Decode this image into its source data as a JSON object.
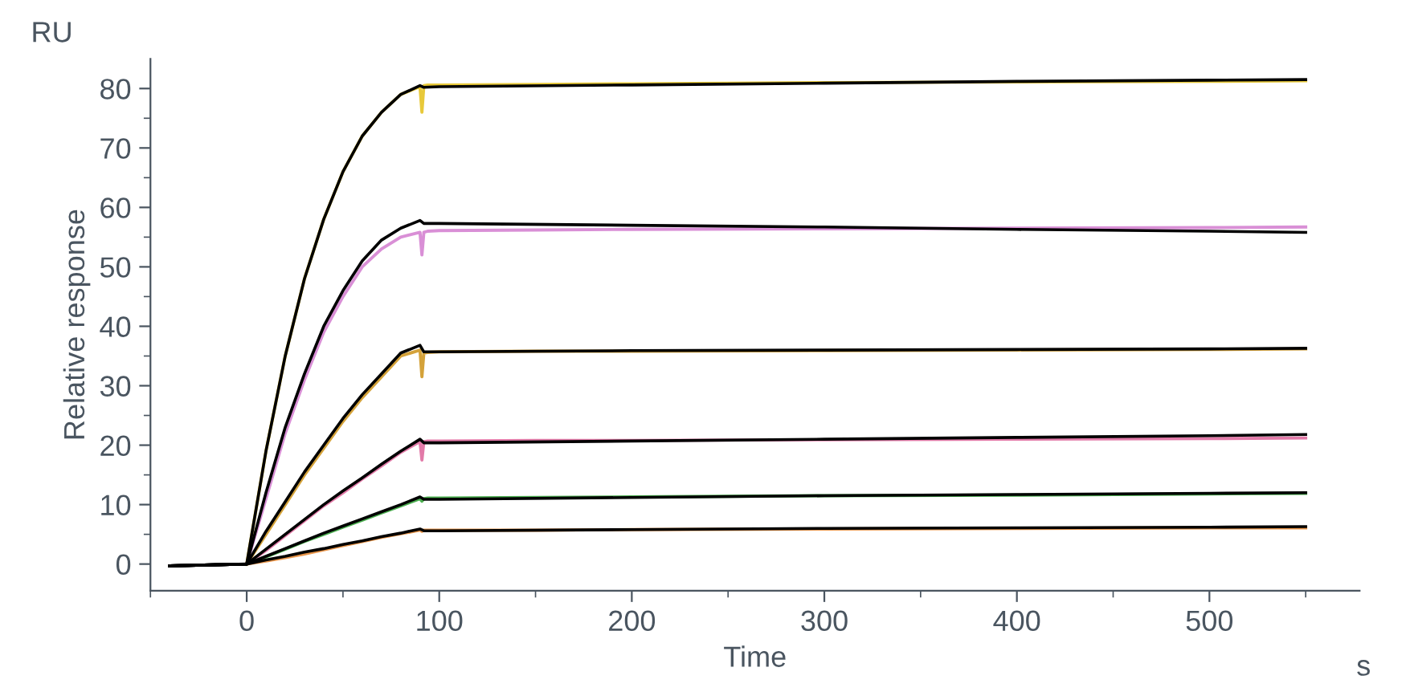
{
  "chart_data": {
    "type": "line",
    "xlabel": "Time",
    "ylabel": "Relative response",
    "annotations": [
      "RU",
      "s"
    ],
    "xlim": [
      -50,
      578
    ],
    "ylim": [
      -4.5,
      85
    ],
    "xticks": [
      {
        "value": -50,
        "label": null
      },
      0,
      {
        "value": 50,
        "label": null
      },
      100,
      {
        "value": 150,
        "label": null
      },
      200,
      {
        "value": 250,
        "label": null
      },
      300,
      {
        "value": 350,
        "label": null
      },
      400,
      {
        "value": 450,
        "label": null
      },
      500,
      {
        "value": 550,
        "label": null
      }
    ],
    "yticks": [
      0,
      {
        "value": 5,
        "label": null
      },
      10,
      {
        "value": 15,
        "label": null
      },
      20,
      {
        "value": 25,
        "label": null
      },
      30,
      {
        "value": 35,
        "label": null
      },
      40,
      {
        "value": 45,
        "label": null
      },
      50,
      {
        "value": 55,
        "label": null
      },
      60,
      {
        "value": 65,
        "label": null
      },
      70,
      {
        "value": 75,
        "label": null
      },
      80
    ],
    "grid": false,
    "legend": false,
    "marker": "none",
    "line_style": "solid",
    "series": [
      {
        "color": "#e8c93a",
        "x": [
          0,
          10,
          20,
          30,
          40,
          50,
          60,
          70,
          80,
          90,
          91,
          92,
          94,
          100,
          150,
          200,
          300,
          400,
          500,
          550
        ],
        "values": [
          0,
          19,
          35,
          48,
          58,
          66,
          72,
          76,
          79,
          80.3,
          76,
          80.5,
          80.6,
          80.6,
          80.7,
          80.8,
          81,
          81.1,
          81.2,
          81.3
        ]
      },
      {
        "color": "#d98fd6",
        "x": [
          0,
          10,
          20,
          30,
          40,
          50,
          60,
          70,
          80,
          90,
          91,
          92,
          94,
          100,
          150,
          200,
          300,
          400,
          500,
          550
        ],
        "values": [
          0,
          11,
          22,
          31,
          39,
          45,
          50,
          53,
          55,
          55.8,
          52,
          55.8,
          56,
          56.1,
          56.2,
          56.3,
          56.4,
          56.5,
          56.6,
          56.7
        ]
      },
      {
        "color": "#d4a23a",
        "x": [
          0,
          10,
          20,
          30,
          40,
          50,
          60,
          70,
          80,
          90,
          91,
          92,
          94,
          100,
          150,
          200,
          300,
          400,
          500,
          550
        ],
        "values": [
          0,
          5,
          10,
          15,
          19.5,
          24,
          28,
          31.5,
          35,
          36,
          31.5,
          35.5,
          35.6,
          35.7,
          35.8,
          35.8,
          35.9,
          36,
          36.1,
          36.2
        ]
      },
      {
        "color": "#e27aa8",
        "x": [
          0,
          10,
          20,
          30,
          40,
          50,
          60,
          70,
          80,
          90,
          91,
          92,
          94,
          100,
          150,
          200,
          300,
          400,
          500,
          550
        ],
        "values": [
          0,
          2.3,
          4.8,
          7.3,
          9.8,
          12,
          14.3,
          16.5,
          18.8,
          20.6,
          17.5,
          20.6,
          20.7,
          20.7,
          20.8,
          20.8,
          20.9,
          21,
          21.1,
          21.2
        ]
      },
      {
        "color": "#4caf50",
        "x": [
          0,
          10,
          20,
          30,
          40,
          50,
          60,
          70,
          80,
          90,
          91,
          92,
          94,
          100,
          150,
          200,
          300,
          400,
          500,
          550
        ],
        "values": [
          0,
          1.2,
          2.5,
          3.8,
          5,
          6.2,
          7.4,
          8.6,
          9.8,
          11,
          10.6,
          11,
          11.1,
          11.1,
          11.2,
          11.3,
          11.5,
          11.6,
          11.8,
          11.9
        ]
      },
      {
        "color": "#e8954a",
        "x": [
          0,
          10,
          20,
          30,
          40,
          50,
          60,
          70,
          80,
          90,
          91,
          92,
          94,
          100,
          150,
          200,
          300,
          400,
          500,
          550
        ],
        "values": [
          0,
          0.5,
          1.1,
          1.7,
          2.4,
          3.1,
          3.8,
          4.5,
          5.1,
          5.7,
          5.5,
          5.7,
          5.7,
          5.7,
          5.7,
          5.8,
          5.9,
          6,
          6.1,
          6.1
        ]
      },
      {
        "color": "#000000",
        "x": [
          -40,
          0,
          10,
          20,
          30,
          40,
          50,
          60,
          70,
          80,
          90,
          92,
          100,
          200,
          300,
          400,
          500,
          550
        ],
        "values": [
          -0.3,
          0,
          19,
          35,
          48,
          58,
          66,
          72,
          76,
          79,
          80.5,
          80.2,
          80.3,
          80.6,
          80.9,
          81.2,
          81.4,
          81.5
        ]
      },
      {
        "color": "#000000",
        "x": [
          -40,
          0,
          10,
          20,
          30,
          40,
          50,
          60,
          70,
          80,
          90,
          92,
          100,
          200,
          300,
          400,
          500,
          550
        ],
        "values": [
          -0.3,
          0,
          12,
          23,
          32,
          40,
          46,
          51,
          54.5,
          56.5,
          57.8,
          57.3,
          57.3,
          57,
          56.7,
          56.3,
          56,
          55.8
        ]
      },
      {
        "color": "#000000",
        "x": [
          -40,
          0,
          10,
          20,
          30,
          40,
          50,
          60,
          70,
          80,
          90,
          92,
          100,
          200,
          300,
          400,
          500,
          550
        ],
        "values": [
          -0.3,
          0,
          5.5,
          10.5,
          15.5,
          20,
          24.5,
          28.5,
          32,
          35.5,
          36.8,
          35.7,
          35.7,
          35.9,
          36,
          36.1,
          36.2,
          36.3
        ]
      },
      {
        "color": "#000000",
        "x": [
          -40,
          0,
          10,
          20,
          30,
          40,
          50,
          60,
          70,
          80,
          90,
          92,
          100,
          200,
          300,
          400,
          500,
          550
        ],
        "values": [
          -0.3,
          0,
          2.5,
          5,
          7.5,
          10,
          12.3,
          14.5,
          16.8,
          19,
          21,
          20.4,
          20.4,
          20.7,
          21,
          21.3,
          21.6,
          21.8
        ]
      },
      {
        "color": "#000000",
        "x": [
          -40,
          0,
          10,
          20,
          30,
          40,
          50,
          60,
          70,
          80,
          90,
          92,
          100,
          200,
          300,
          400,
          500,
          550
        ],
        "values": [
          -0.3,
          0,
          1.3,
          2.6,
          3.9,
          5.2,
          6.4,
          7.6,
          8.8,
          10,
          11.3,
          10.9,
          10.9,
          11.2,
          11.5,
          11.7,
          11.9,
          12
        ]
      },
      {
        "color": "#000000",
        "x": [
          -40,
          0,
          10,
          20,
          30,
          40,
          50,
          60,
          70,
          80,
          90,
          92,
          100,
          200,
          300,
          400,
          500,
          550
        ],
        "values": [
          -0.3,
          0,
          0.7,
          1.3,
          2,
          2.6,
          3.3,
          3.9,
          4.6,
          5.2,
          5.9,
          5.6,
          5.6,
          5.8,
          6,
          6.1,
          6.2,
          6.3
        ]
      }
    ]
  }
}
